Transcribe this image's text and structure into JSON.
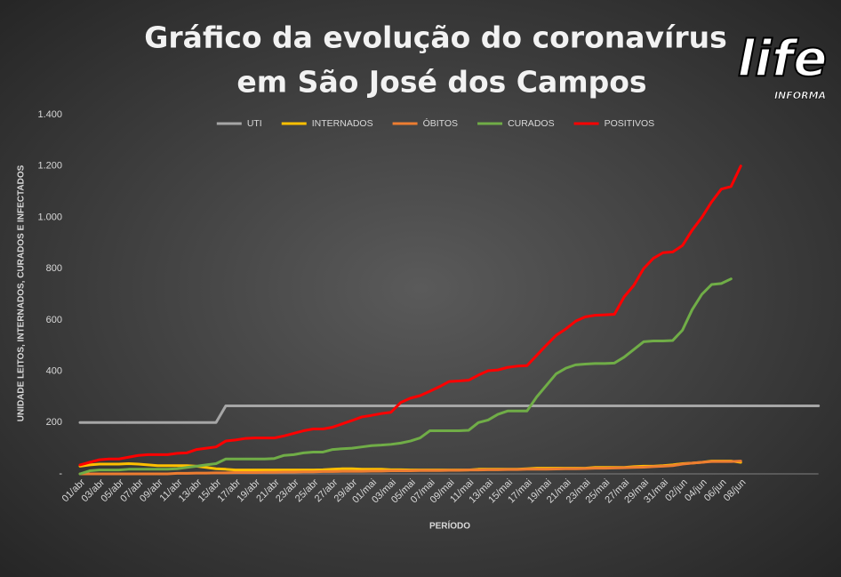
{
  "logo": {
    "text": "life",
    "subtext": "INFORMA"
  },
  "chart_data": {
    "type": "line",
    "title": [
      "Gráfico da evolução do coronavírus",
      "em São José dos Campos"
    ],
    "x_label": "PERÍODO",
    "y_label": "UNIDADE LEITOS, INTERNADOS, CURADOS E INFECTADOS",
    "categories": [
      "01/abr",
      null,
      "03/abr",
      null,
      "05/abr",
      null,
      "07/abr",
      null,
      "09/abr",
      null,
      "11/abr",
      null,
      "13/abr",
      null,
      "15/abr",
      null,
      "17/abr",
      null,
      "19/abr",
      null,
      "21/abr",
      null,
      "23/abr",
      null,
      "25/abr",
      null,
      "27/abr",
      null,
      "29/abr",
      null,
      "01/mai",
      null,
      "03/mai",
      null,
      "05/mai",
      null,
      "07/mai",
      null,
      "09/mai",
      null,
      "11/mai",
      null,
      "13/mai",
      null,
      "15/mai",
      null,
      "17/mai",
      null,
      "19/mai",
      null,
      "21/mai",
      null,
      "23/mai",
      null,
      "25/mai",
      null,
      "27/mai",
      null,
      "29/mai",
      null,
      "31/mai",
      null,
      "02/jun",
      null,
      "04/jun",
      null,
      "06/jun",
      null,
      "08/jun",
      null,
      null,
      null,
      null,
      null,
      null,
      null,
      null
    ],
    "ylim": [
      0,
      1400
    ],
    "yticks": [
      {
        "value": 0,
        "label": "-"
      },
      200,
      400,
      600,
      800,
      {
        "value": 1000,
        "label": "1.000"
      },
      {
        "value": 1200,
        "label": "1.200"
      },
      {
        "value": 1400,
        "label": "1.400"
      }
    ],
    "grid": false,
    "legend": "top",
    "series": [
      {
        "name": "UTI",
        "color": "#a6a6a6",
        "values": [
          200,
          200,
          200,
          200,
          200,
          200,
          200,
          200,
          200,
          200,
          200,
          200,
          200,
          200,
          200,
          265,
          265,
          265,
          265,
          265,
          265,
          265,
          265,
          265,
          265,
          265,
          265,
          265,
          265,
          265,
          265,
          265,
          265,
          265,
          265,
          265,
          265,
          265,
          265,
          265,
          265,
          265,
          265,
          265,
          265,
          265,
          265,
          265,
          265,
          265,
          265,
          265,
          265,
          265,
          265,
          265,
          265,
          265,
          265,
          265,
          265,
          265,
          265,
          265,
          265,
          265,
          265,
          265,
          265,
          265,
          265,
          265,
          265,
          265,
          265,
          265,
          265
        ]
      },
      {
        "name": "INTERNADOS",
        "color": "#ffc000",
        "values": [
          30,
          35,
          38,
          38,
          38,
          40,
          38,
          35,
          32,
          32,
          32,
          32,
          30,
          25,
          20,
          18,
          15,
          15,
          15,
          15,
          15,
          15,
          15,
          15,
          15,
          16,
          18,
          20,
          20,
          18,
          18,
          18,
          16,
          16,
          15,
          15,
          15,
          15,
          15,
          15,
          15,
          18,
          18,
          18,
          18,
          18,
          20,
          22,
          22,
          22,
          22,
          22,
          22,
          25,
          25,
          25,
          25,
          28,
          30,
          30,
          32,
          35,
          40,
          42,
          45,
          50,
          50,
          50,
          45,
          null,
          null,
          null,
          null,
          null,
          null,
          null,
          null
        ]
      },
      {
        "name": "ÓBITOS",
        "color": "#ed7d31",
        "values": [
          0,
          0,
          0,
          0,
          0,
          0,
          0,
          0,
          0,
          0,
          2,
          2,
          3,
          3,
          4,
          4,
          5,
          5,
          5,
          6,
          6,
          7,
          7,
          8,
          8,
          9,
          9,
          10,
          10,
          10,
          11,
          11,
          12,
          12,
          12,
          13,
          13,
          13,
          14,
          14,
          15,
          15,
          16,
          16,
          17,
          17,
          18,
          18,
          18,
          19,
          20,
          20,
          21,
          22,
          22,
          23,
          24,
          25,
          26,
          28,
          30,
          32,
          38,
          42,
          45,
          48,
          48,
          48,
          50,
          null,
          null,
          null,
          null,
          null,
          null,
          null,
          null
        ]
      },
      {
        "name": "CURADOS",
        "color": "#70ad47",
        "values": [
          0,
          12,
          15,
          15,
          15,
          18,
          18,
          18,
          18,
          18,
          20,
          25,
          30,
          35,
          40,
          58,
          58,
          58,
          58,
          58,
          60,
          72,
          75,
          82,
          85,
          85,
          95,
          98,
          100,
          105,
          110,
          112,
          115,
          120,
          128,
          140,
          168,
          168,
          168,
          168,
          170,
          200,
          210,
          232,
          245,
          245,
          245,
          300,
          345,
          390,
          412,
          425,
          428,
          430,
          430,
          432,
          455,
          485,
          515,
          518,
          518,
          520,
          560,
          640,
          700,
          738,
          742,
          760,
          null,
          null,
          null,
          null,
          null,
          null,
          null,
          null,
          null
        ]
      },
      {
        "name": "POSITIVOS",
        "color": "#ff0000",
        "values": [
          35,
          45,
          55,
          58,
          58,
          65,
          72,
          75,
          75,
          75,
          80,
          82,
          95,
          100,
          105,
          128,
          132,
          138,
          140,
          140,
          140,
          148,
          158,
          168,
          175,
          175,
          182,
          195,
          208,
          222,
          228,
          235,
          240,
          278,
          295,
          305,
          322,
          340,
          360,
          362,
          365,
          385,
          402,
          405,
          415,
          420,
          422,
          462,
          502,
          540,
          565,
          595,
          612,
          618,
          620,
          622,
          690,
          735,
          800,
          840,
          862,
          865,
          890,
          950,
          1000,
          1060,
          1110,
          1120,
          1200,
          null,
          null,
          null,
          null,
          null,
          null,
          null,
          null
        ]
      }
    ]
  }
}
